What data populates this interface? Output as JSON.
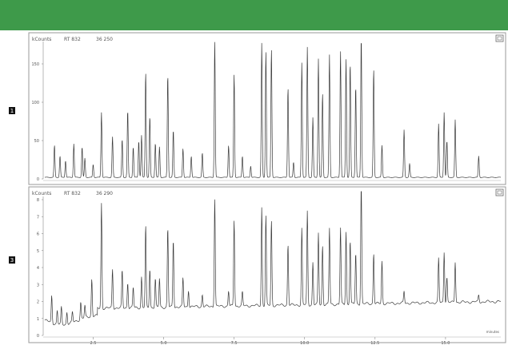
{
  "colors": {
    "header": "#3e9a4a",
    "frame_border": "#9a9a9a",
    "trace": "#3a3a3a",
    "axis_text": "#555555",
    "badge_bg": "#111111",
    "icon_border": "#666666"
  },
  "chart_data": [
    {
      "type": "line",
      "title": "",
      "header_left": "kCounts",
      "header_mid": "RT 832",
      "header_right": "36 250",
      "panel_badge": "1",
      "ylabel": "",
      "xlabel": "",
      "ylim": [
        0,
        175
      ],
      "yticks": [
        "0",
        "50",
        "100",
        "150"
      ],
      "ytick_values": [
        0,
        50,
        100,
        150
      ],
      "xlim": [
        0,
        33
      ],
      "baseline": 2,
      "peaks": [
        {
          "rt": 0.7,
          "h": 42
        },
        {
          "rt": 1.1,
          "h": 28
        },
        {
          "rt": 1.5,
          "h": 22
        },
        {
          "rt": 2.1,
          "h": 44
        },
        {
          "rt": 2.7,
          "h": 40
        },
        {
          "rt": 2.9,
          "h": 25
        },
        {
          "rt": 3.5,
          "h": 17
        },
        {
          "rt": 4.1,
          "h": 85
        },
        {
          "rt": 4.9,
          "h": 53
        },
        {
          "rt": 5.6,
          "h": 50
        },
        {
          "rt": 6.0,
          "h": 88
        },
        {
          "rt": 6.4,
          "h": 40
        },
        {
          "rt": 6.8,
          "h": 48
        },
        {
          "rt": 7.0,
          "h": 55
        },
        {
          "rt": 7.3,
          "h": 138
        },
        {
          "rt": 7.6,
          "h": 80
        },
        {
          "rt": 8.0,
          "h": 45
        },
        {
          "rt": 8.3,
          "h": 40
        },
        {
          "rt": 8.9,
          "h": 135
        },
        {
          "rt": 9.3,
          "h": 62
        },
        {
          "rt": 10.0,
          "h": 38
        },
        {
          "rt": 10.6,
          "h": 28
        },
        {
          "rt": 11.4,
          "h": 32
        },
        {
          "rt": 12.3,
          "h": 178
        },
        {
          "rt": 13.3,
          "h": 42
        },
        {
          "rt": 13.7,
          "h": 135
        },
        {
          "rt": 14.3,
          "h": 28
        },
        {
          "rt": 14.9,
          "h": 15
        },
        {
          "rt": 15.7,
          "h": 175
        },
        {
          "rt": 16.0,
          "h": 165
        },
        {
          "rt": 16.4,
          "h": 168
        },
        {
          "rt": 17.6,
          "h": 118
        },
        {
          "rt": 18.0,
          "h": 20
        },
        {
          "rt": 18.6,
          "h": 150
        },
        {
          "rt": 19.0,
          "h": 170
        },
        {
          "rt": 19.4,
          "h": 78
        },
        {
          "rt": 19.8,
          "h": 155
        },
        {
          "rt": 20.1,
          "h": 110
        },
        {
          "rt": 20.6,
          "h": 160
        },
        {
          "rt": 21.4,
          "h": 165
        },
        {
          "rt": 21.8,
          "h": 155
        },
        {
          "rt": 22.1,
          "h": 150
        },
        {
          "rt": 22.5,
          "h": 120
        },
        {
          "rt": 22.9,
          "h": 185
        },
        {
          "rt": 23.8,
          "h": 142
        },
        {
          "rt": 24.4,
          "h": 42
        },
        {
          "rt": 26.0,
          "h": 62
        },
        {
          "rt": 26.4,
          "h": 18
        },
        {
          "rt": 28.5,
          "h": 70
        },
        {
          "rt": 28.9,
          "h": 85
        },
        {
          "rt": 29.1,
          "h": 48
        },
        {
          "rt": 29.7,
          "h": 75
        },
        {
          "rt": 31.4,
          "h": 28
        }
      ]
    },
    {
      "type": "line",
      "title": "",
      "header_left": "kCounts",
      "header_mid": "RT 832",
      "header_right": "36 290",
      "panel_badge": "3",
      "ylabel": "",
      "xlabel": "",
      "ylim": [
        0,
        8
      ],
      "yticks": [
        "0",
        "1",
        "2",
        "3",
        "4",
        "5",
        "6",
        "7",
        "8"
      ],
      "ytick_values": [
        0,
        1,
        2,
        3,
        4,
        5,
        6,
        7,
        8
      ],
      "xlim": [
        0,
        33
      ],
      "xticks": [
        "2.5",
        "5.0",
        "7.5",
        "10.0",
        "12.5",
        "15.0"
      ],
      "xtick_values": [
        3.5,
        8.6,
        13.7,
        18.8,
        23.9,
        29.0
      ],
      "xtick_note": "minutes",
      "baseline": 1.3,
      "peaks": [
        {
          "rt": 0.5,
          "h": 1.6
        },
        {
          "rt": 0.9,
          "h": 0.8
        },
        {
          "rt": 1.2,
          "h": 1.0
        },
        {
          "rt": 1.6,
          "h": 0.7
        },
        {
          "rt": 2.0,
          "h": 0.6
        },
        {
          "rt": 2.6,
          "h": 1.0
        },
        {
          "rt": 2.9,
          "h": 0.7
        },
        {
          "rt": 3.4,
          "h": 2.2
        },
        {
          "rt": 4.1,
          "h": 6.2
        },
        {
          "rt": 4.9,
          "h": 2.3
        },
        {
          "rt": 5.6,
          "h": 2.2
        },
        {
          "rt": 6.0,
          "h": 1.5
        },
        {
          "rt": 6.4,
          "h": 1.2
        },
        {
          "rt": 7.0,
          "h": 1.8
        },
        {
          "rt": 7.3,
          "h": 4.8
        },
        {
          "rt": 7.6,
          "h": 2.3
        },
        {
          "rt": 8.0,
          "h": 1.7
        },
        {
          "rt": 8.3,
          "h": 1.7
        },
        {
          "rt": 8.9,
          "h": 4.7
        },
        {
          "rt": 9.3,
          "h": 4.0
        },
        {
          "rt": 10.0,
          "h": 1.7
        },
        {
          "rt": 10.4,
          "h": 1.0
        },
        {
          "rt": 11.4,
          "h": 0.7
        },
        {
          "rt": 12.3,
          "h": 6.4
        },
        {
          "rt": 13.3,
          "h": 0.9
        },
        {
          "rt": 13.7,
          "h": 5.1
        },
        {
          "rt": 14.3,
          "h": 0.8
        },
        {
          "rt": 15.7,
          "h": 5.8
        },
        {
          "rt": 16.0,
          "h": 5.3
        },
        {
          "rt": 16.4,
          "h": 5.0
        },
        {
          "rt": 17.6,
          "h": 3.6
        },
        {
          "rt": 18.6,
          "h": 4.5
        },
        {
          "rt": 19.0,
          "h": 5.5
        },
        {
          "rt": 19.4,
          "h": 2.5
        },
        {
          "rt": 19.8,
          "h": 4.2
        },
        {
          "rt": 20.1,
          "h": 3.5
        },
        {
          "rt": 20.6,
          "h": 4.5
        },
        {
          "rt": 21.4,
          "h": 4.5
        },
        {
          "rt": 21.8,
          "h": 4.3
        },
        {
          "rt": 22.1,
          "h": 3.8
        },
        {
          "rt": 22.5,
          "h": 3.0
        },
        {
          "rt": 22.9,
          "h": 7.6
        },
        {
          "rt": 23.8,
          "h": 3.0
        },
        {
          "rt": 24.4,
          "h": 2.5
        },
        {
          "rt": 26.0,
          "h": 0.7
        },
        {
          "rt": 28.5,
          "h": 2.6
        },
        {
          "rt": 28.9,
          "h": 3.0
        },
        {
          "rt": 29.1,
          "h": 1.5
        },
        {
          "rt": 29.7,
          "h": 2.4
        },
        {
          "rt": 31.4,
          "h": 0.4
        }
      ]
    }
  ]
}
